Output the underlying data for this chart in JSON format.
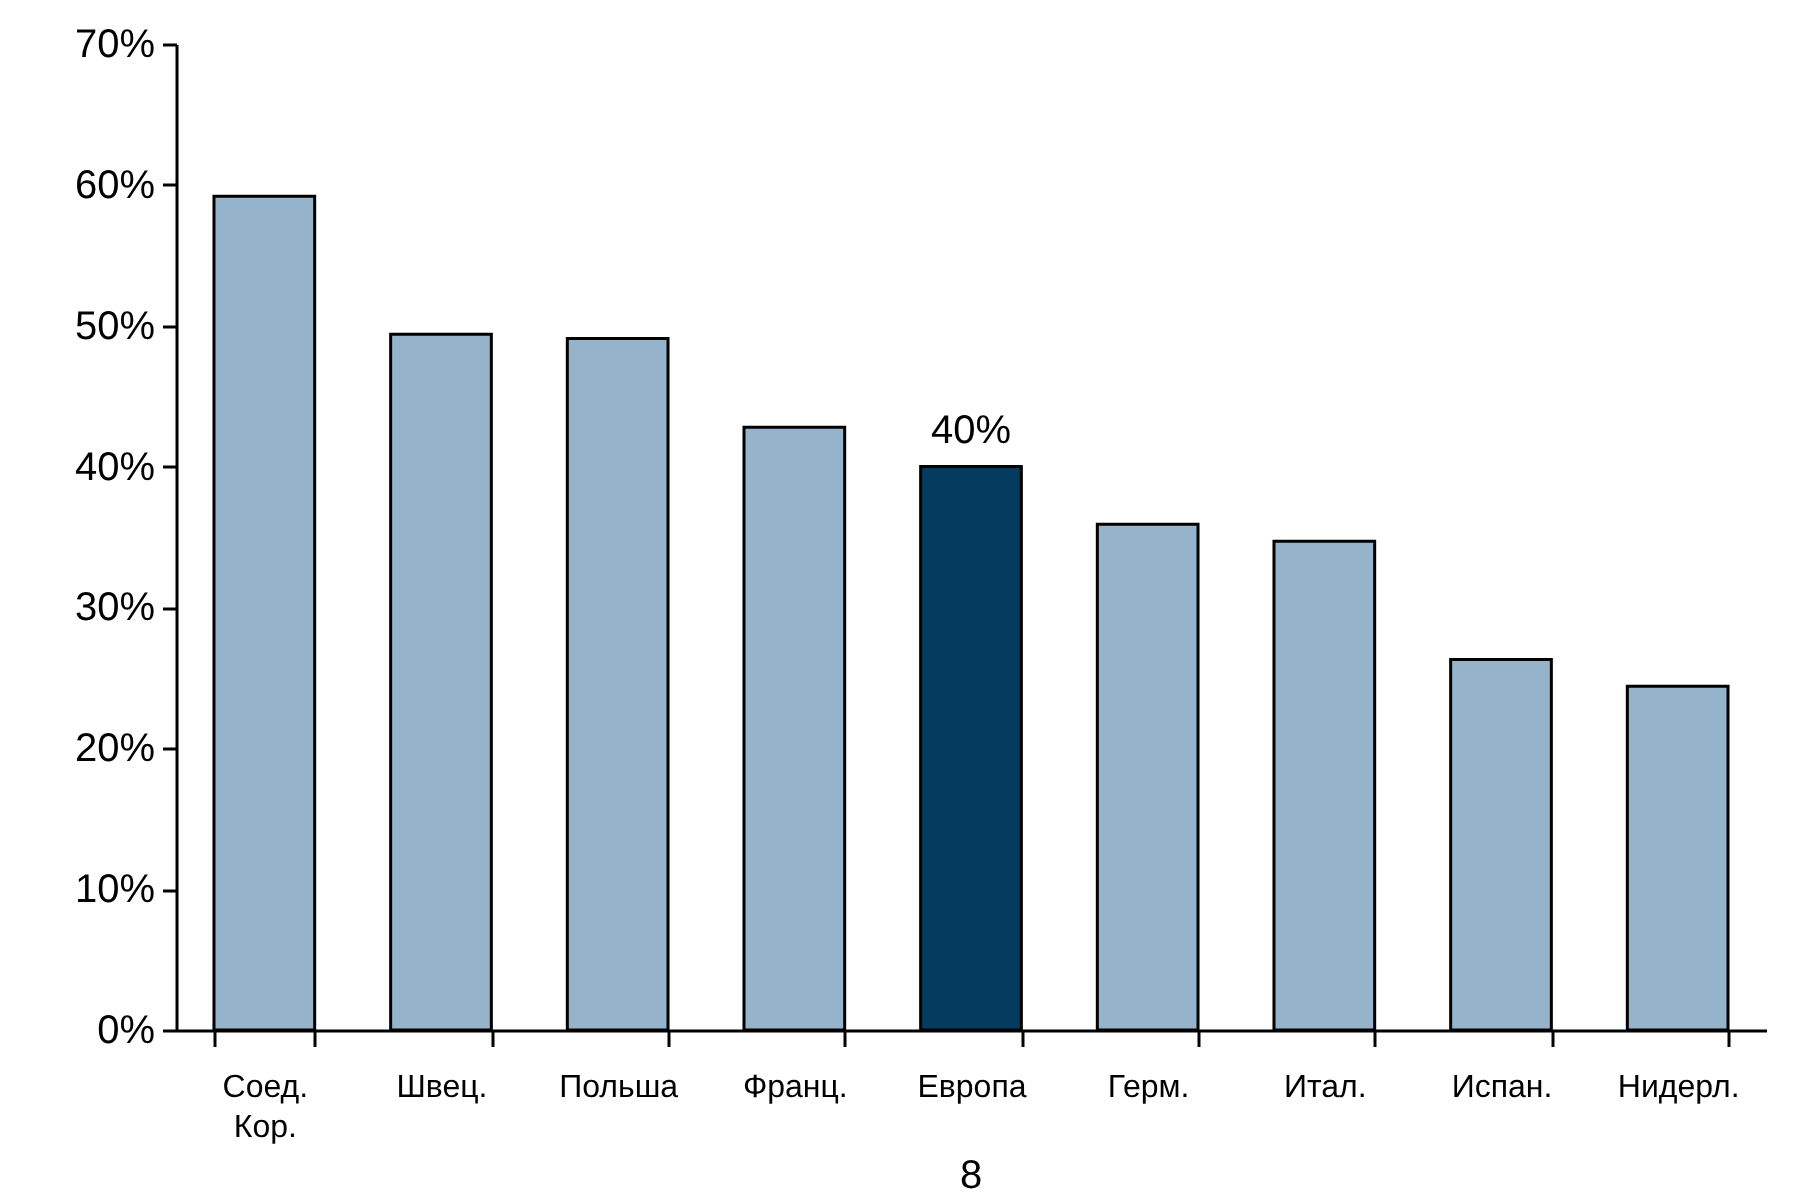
{
  "chart_data": {
    "type": "bar",
    "categories": [
      "Соед. Кор.",
      "Швец.",
      "Польша",
      "Франц.",
      "Европа",
      "Герм.",
      "Итал.",
      "Испан.",
      "Нидерл."
    ],
    "values": [
      59.2,
      49.4,
      49.1,
      42.8,
      40,
      35.9,
      34.7,
      26.3,
      24.4
    ],
    "colors": [
      "#95b3cb",
      "#95b3cb",
      "#95b3cb",
      "#95b3cb",
      "#043b5e",
      "#95b3cb",
      "#95b3cb",
      "#95b3cb",
      "#95b3cb"
    ],
    "value_labels": [
      null,
      null,
      null,
      null,
      "40%",
      null,
      null,
      null,
      null
    ],
    "ylim": [
      0,
      70
    ],
    "yticks": [
      {
        "value": 0,
        "label": "0%"
      },
      {
        "value": 10,
        "label": "10%"
      },
      {
        "value": 20,
        "label": "20%"
      },
      {
        "value": 30,
        "label": "30%"
      },
      {
        "value": 40,
        "label": "40%"
      },
      {
        "value": 50,
        "label": "50%"
      },
      {
        "value": 60,
        "label": "60%"
      },
      {
        "value": 70,
        "label": "70%"
      }
    ],
    "annotations": [
      "8"
    ]
  }
}
